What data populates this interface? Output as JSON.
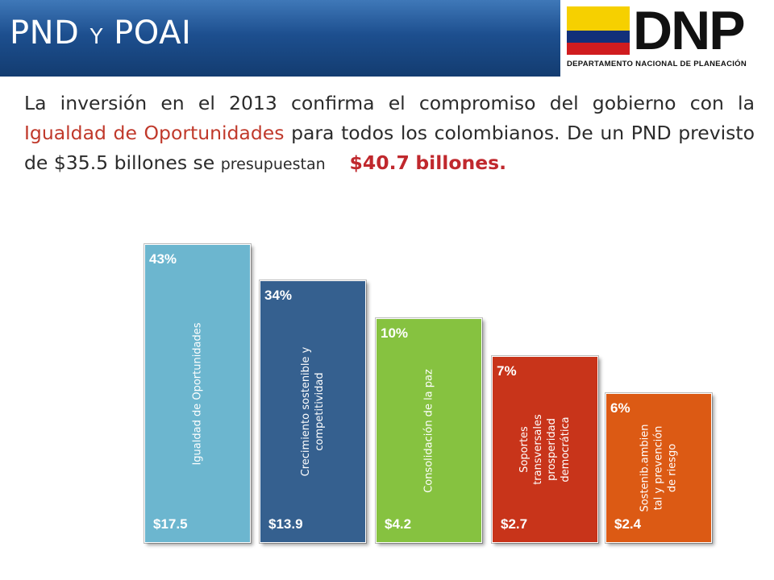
{
  "header": {
    "title_main": "PND",
    "title_y": "Y",
    "title_end": "POAI"
  },
  "logo": {
    "mark": "DNP",
    "subtitle": "DEPARTAMENTO NACIONAL DE PLANEACIÓN",
    "colors": {
      "yellow": "#f6d000",
      "blue": "#12307a",
      "red": "#d01c1f"
    }
  },
  "intro": {
    "part1": "La inversión en el 2013 confirma el compromiso del gobierno con la ",
    "highlight": "Igualdad de Oportunidades",
    "part2": " para todos los colombianos. De un PND previsto de $35.5 billones se ",
    "small": "presupuestan",
    "amount": "$40.7",
    "end": "billones."
  },
  "chart_data": {
    "type": "bar",
    "categories": [
      "Igualdad de Oportunidades",
      "Crecimiento sostenible y competitividad",
      "Consolidación de la paz",
      "Soportes transversales prosperidad democrática",
      "Sostenib.ambiental y prevención de riesgo"
    ],
    "label_lines": [
      [
        "Igualdad de Oportunidades"
      ],
      [
        "Crecimiento sostenible y",
        "competitividad"
      ],
      [
        "Consolidación de la paz"
      ],
      [
        "Soportes",
        "transversales",
        "prosperidad",
        "democrática"
      ],
      [
        "Sostenib.ambien",
        "tal y prevención",
        "de riesgo"
      ]
    ],
    "values": [
      17.5,
      13.9,
      4.2,
      2.7,
      2.4
    ],
    "value_labels": [
      "$17.5",
      "$13.9",
      "$4.2",
      "$2.7",
      "$2.4"
    ],
    "percent_labels": [
      "43%",
      "34%",
      "10%",
      "7%",
      "6%"
    ],
    "colors": [
      "#6cb6cf",
      "#35608f",
      "#86c240",
      "#c8341a",
      "#dc5a14"
    ],
    "title": "",
    "xlabel": "",
    "ylabel": ""
  }
}
